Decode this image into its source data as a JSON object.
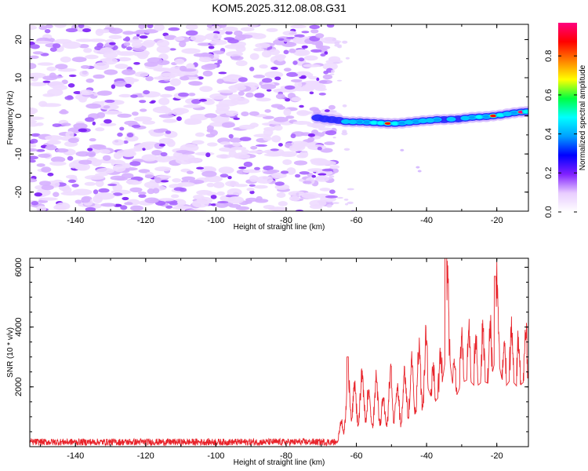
{
  "title": "KOM5.2025.312.08.08.G31",
  "chart_data": [
    {
      "type": "heatmap",
      "panel": "spectrogram",
      "xlabel": "Height of straight line (km)",
      "ylabel": "Frequency (Hz)",
      "xlim": [
        -153,
        -11
      ],
      "ylim": [
        -25,
        24
      ],
      "x_ticks": [
        -140,
        -120,
        -100,
        -80,
        -60,
        -40,
        -20
      ],
      "x_tick_labels": [
        "-140",
        "-120",
        "-100",
        "-80",
        "-60",
        "-40",
        "-20"
      ],
      "y_ticks": [
        -20,
        -10,
        0,
        10,
        20
      ],
      "y_tick_labels": [
        "-20",
        "-10",
        "0",
        "10",
        "20"
      ],
      "noise_region_x": [
        -153,
        -66
      ],
      "signal_track": [
        {
          "x": -71,
          "y": -0.5,
          "amp": 0.22
        },
        {
          "x": -69,
          "y": -0.8,
          "amp": 0.2
        },
        {
          "x": -67,
          "y": -1.0,
          "amp": 0.28
        },
        {
          "x": -65,
          "y": -1.2,
          "amp": 0.3
        },
        {
          "x": -63,
          "y": -1.5,
          "amp": 0.45
        },
        {
          "x": -61,
          "y": -1.6,
          "amp": 0.35
        },
        {
          "x": -59,
          "y": -1.6,
          "amp": 0.55
        },
        {
          "x": -57,
          "y": -1.7,
          "amp": 0.5
        },
        {
          "x": -55,
          "y": -1.8,
          "amp": 0.6
        },
        {
          "x": -53,
          "y": -1.9,
          "amp": 0.7
        },
        {
          "x": -51,
          "y": -2.0,
          "amp": 0.92
        },
        {
          "x": -49,
          "y": -2.0,
          "amp": 0.65
        },
        {
          "x": -47,
          "y": -1.9,
          "amp": 0.5
        },
        {
          "x": -45,
          "y": -1.7,
          "amp": 0.45
        },
        {
          "x": -43,
          "y": -1.5,
          "amp": 0.55
        },
        {
          "x": -41,
          "y": -1.3,
          "amp": 0.35
        },
        {
          "x": -39,
          "y": -1.2,
          "amp": 0.4
        },
        {
          "x": -37,
          "y": -1.0,
          "amp": 0.5
        },
        {
          "x": -35,
          "y": -1.0,
          "amp": 0.3
        },
        {
          "x": -33,
          "y": -0.9,
          "amp": 0.35
        },
        {
          "x": -31,
          "y": -0.8,
          "amp": 0.3
        },
        {
          "x": -29,
          "y": -0.6,
          "amp": 0.35
        },
        {
          "x": -27,
          "y": -0.4,
          "amp": 0.5
        },
        {
          "x": -25,
          "y": -0.3,
          "amp": 0.6
        },
        {
          "x": -23,
          "y": -0.2,
          "amp": 0.55
        },
        {
          "x": -21,
          "y": 0.0,
          "amp": 0.88
        },
        {
          "x": -19,
          "y": 0.2,
          "amp": 0.6
        },
        {
          "x": -17,
          "y": 0.5,
          "amp": 0.45
        },
        {
          "x": -15,
          "y": 0.8,
          "amp": 0.55
        },
        {
          "x": -13,
          "y": 1.0,
          "amp": 0.97
        },
        {
          "x": -11.5,
          "y": 1.1,
          "amp": 0.6
        }
      ],
      "colorbar": {
        "label": "Normalized spectral amplitude",
        "range": [
          0,
          0.97
        ],
        "ticks": [
          0,
          0.2,
          0.4,
          0.6,
          0.8
        ],
        "tick_labels": [
          "0.0",
          "0.2",
          "0.4",
          "0.6",
          "0.8"
        ],
        "colors": [
          "#ffffff",
          "#e8ccff",
          "#8020ff",
          "#0000ff",
          "#00a0ff",
          "#00ffff",
          "#00ff40",
          "#ffff00",
          "#ff8000",
          "#ff0000",
          "#ff0080"
        ]
      }
    },
    {
      "type": "line",
      "panel": "snr",
      "xlabel": "Height of straight line (km)",
      "ylabel": "SNR (10 * v/v)",
      "xlim": [
        -153,
        -11
      ],
      "ylim": [
        0,
        6300
      ],
      "x_ticks": [
        -140,
        -120,
        -100,
        -80,
        -60,
        -40,
        -20
      ],
      "x_tick_labels": [
        "-140",
        "-120",
        "-100",
        "-80",
        "-60",
        "-40",
        "-20"
      ],
      "y_ticks": [
        2000,
        4000,
        6000
      ],
      "y_tick_labels": [
        "2000",
        "4000",
        "6000"
      ],
      "color": "#e8242b",
      "envelope": {
        "x": [
          -153,
          -120,
          -90,
          -70,
          -66,
          -64,
          -62,
          -60,
          -58,
          -56,
          -54,
          -52,
          -50,
          -48,
          -46,
          -44,
          -42,
          -40,
          -38,
          -36,
          -34,
          -32,
          -30,
          -28,
          -26,
          -24,
          -22,
          -20,
          -18,
          -16,
          -14,
          -11
        ],
        "y": [
          150,
          150,
          150,
          150,
          250,
          1000,
          2800,
          2000,
          2600,
          1800,
          2500,
          1600,
          2700,
          1900,
          2600,
          3000,
          3600,
          3800,
          2600,
          3200,
          6300,
          2800,
          3900,
          4100,
          3600,
          4000,
          3800,
          5700,
          3500,
          4100,
          3600,
          4200
        ]
      },
      "peaks": [
        {
          "x": -34.5,
          "y": 6300
        },
        {
          "x": -20.5,
          "y": 5700
        },
        {
          "x": -62.5,
          "y": 3000
        }
      ]
    }
  ]
}
